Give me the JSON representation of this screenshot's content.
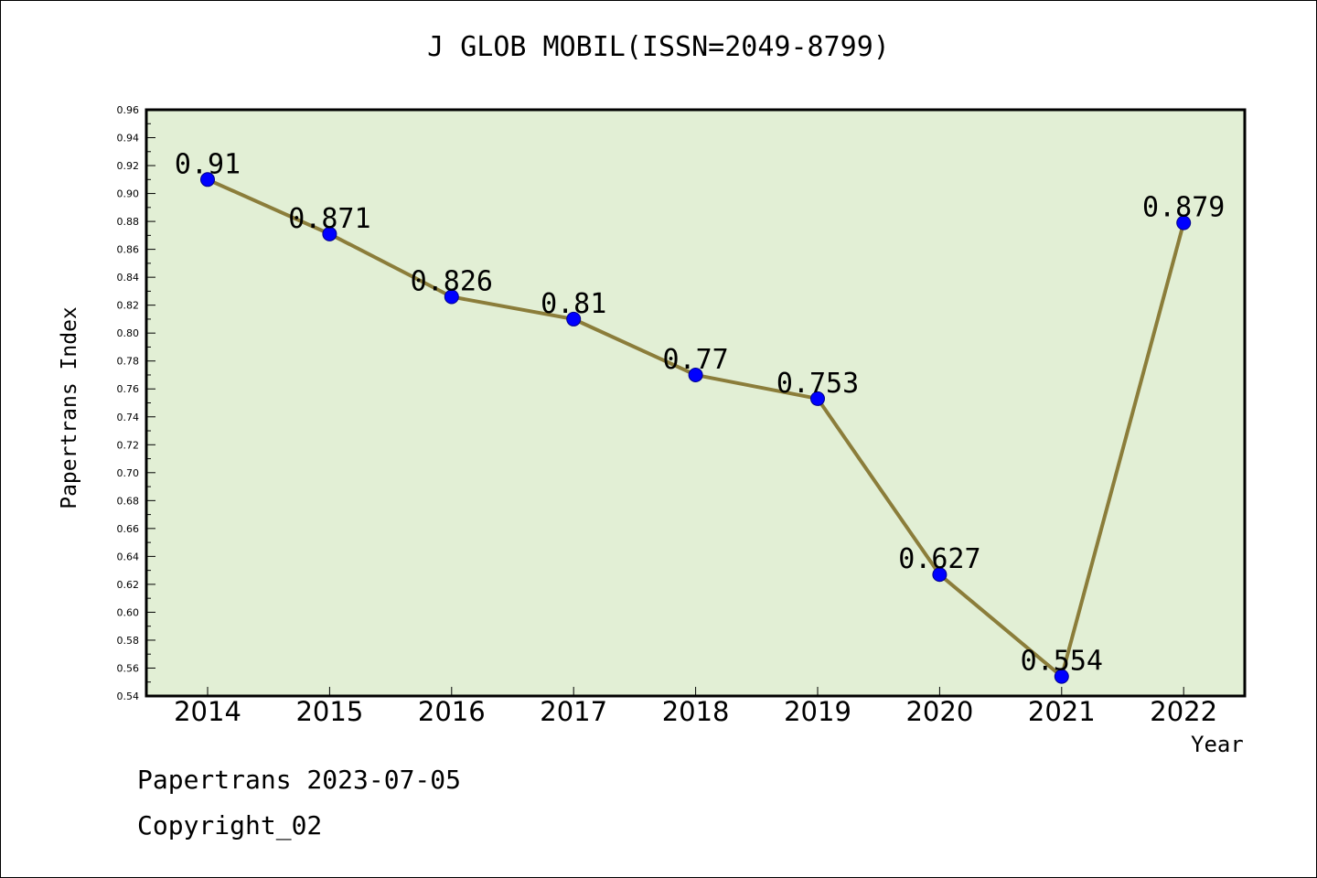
{
  "chart_data": {
    "type": "line",
    "title": "J GLOB MOBIL(ISSN=2049-8799)",
    "xlabel": "Year",
    "ylabel": "Papertrans Index",
    "categories": [
      "2014",
      "2015",
      "2016",
      "2017",
      "2018",
      "2019",
      "2020",
      "2021",
      "2022"
    ],
    "series": [
      {
        "values": [
          0.91,
          0.871,
          0.826,
          0.81,
          0.77,
          0.753,
          0.627,
          0.554,
          0.879
        ]
      }
    ],
    "data_labels": [
      "0.91",
      "0.871",
      "0.826",
      "0.81",
      "0.77",
      "0.753",
      "0.627",
      "0.554",
      "0.879"
    ],
    "ylim": [
      0.54,
      0.96
    ],
    "ytick_step": 0.02,
    "grid": false,
    "legend": "none",
    "colors": {
      "line": "#8b7d3a",
      "marker": "#0000ff",
      "plot_bg": "#e2efd5"
    }
  },
  "footer": {
    "line1": "Papertrans 2023-07-05",
    "line2": "Copyright_02"
  }
}
